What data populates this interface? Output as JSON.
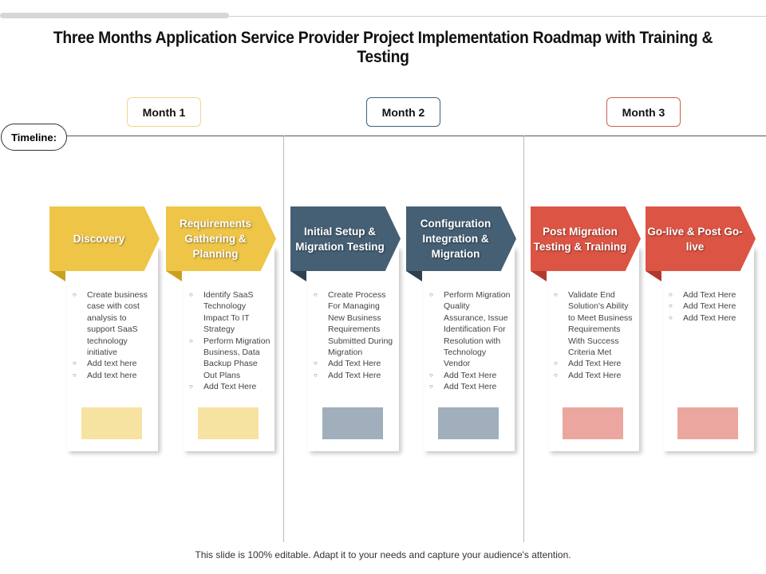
{
  "title": "Three Months Application Service Provider Project Implementation Roadmap with Training & Testing",
  "timeline_label": "Timeline:",
  "months": [
    {
      "label": "Month 1",
      "border": "#EFD58A"
    },
    {
      "label": "Month 2",
      "border": "#455F74"
    },
    {
      "label": "Month 3",
      "border": "#C9614F"
    }
  ],
  "colors": {
    "yellow": "#EFC548",
    "yellow_fold": "#C9A021",
    "yellow_box": "#F7E3A1",
    "blue": "#455F74",
    "blue_fold": "#2E3F4E",
    "blue_box": "#A0AFBB",
    "red": "#DC5444",
    "red_fold": "#B03A2E",
    "red_box": "#EBA79F"
  },
  "phases": [
    {
      "title": "Discovery",
      "bullets": [
        "Create business case with cost analysis to support SaaS technology initiative",
        "Add text here",
        "Add text here"
      ]
    },
    {
      "title": "Requirements Gathering & Planning",
      "bullets": [
        "Identify SaaS Technology Impact To IT Strategy",
        "Perform Migration Business, Data Backup Phase Out Plans",
        "Add Text Here"
      ]
    },
    {
      "title": "Initial Setup & Migration Testing",
      "bullets": [
        "Create Process For Managing New Business Requirements Submitted During Migration",
        "Add Text Here",
        "Add Text Here"
      ]
    },
    {
      "title": "Configuration Integration & Migration",
      "bullets": [
        "Perform Migration Quality Assurance, Issue Identification For Resolution with Technology Vendor",
        "Add Text Here",
        "Add Text Here"
      ]
    },
    {
      "title": "Post Migration Testing & Training",
      "bullets": [
        "Validate End Solution's Ability to Meet Business Requirements With Success Criteria Met",
        "Add Text Here",
        "Add Text Here"
      ]
    },
    {
      "title": "Go-live & Post Go-live",
      "bullets": [
        "Add Text Here",
        "Add Text Here",
        "Add Text Here"
      ]
    }
  ],
  "footer": "This slide is 100% editable. Adapt it to your needs and capture your audience's attention."
}
